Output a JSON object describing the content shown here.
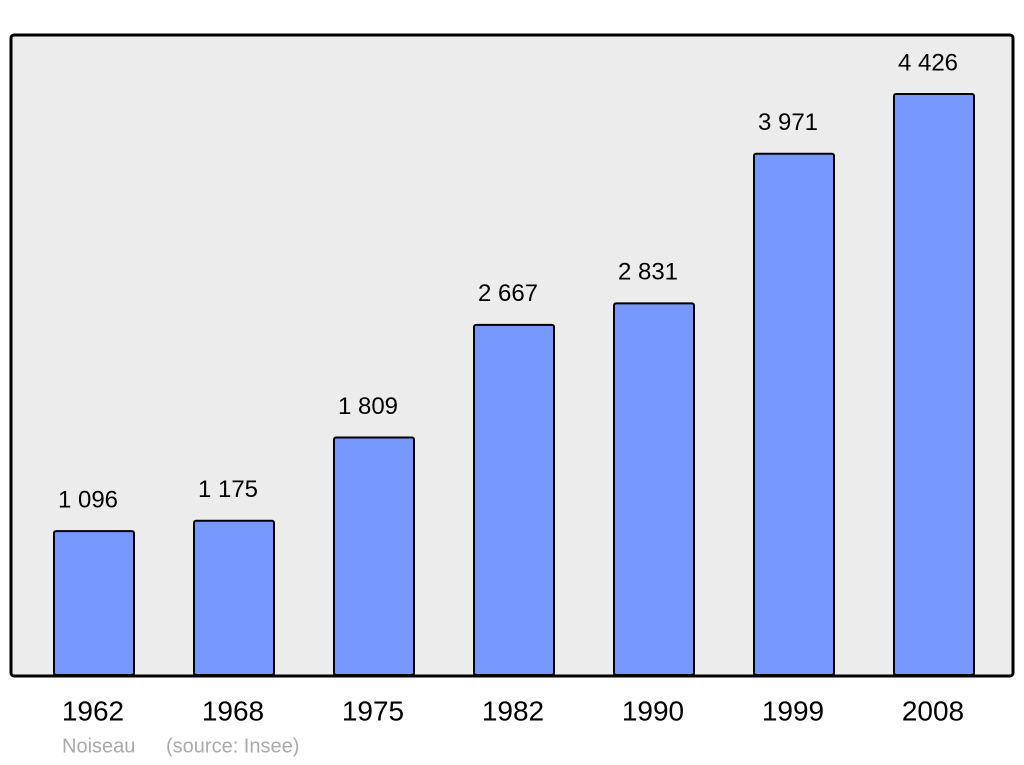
{
  "chart_data": {
    "type": "bar",
    "categories": [
      "1962",
      "1968",
      "1975",
      "1982",
      "1990",
      "1999",
      "2008"
    ],
    "values": [
      1096,
      1175,
      1809,
      2667,
      2831,
      3971,
      4426
    ],
    "value_labels": [
      "1 096",
      "1 175",
      "1 809",
      "2 667",
      "2 831",
      "3 971",
      "4 426"
    ],
    "color": "#7799ff",
    "author": "Noiseau",
    "source": "(source: Insee)"
  }
}
